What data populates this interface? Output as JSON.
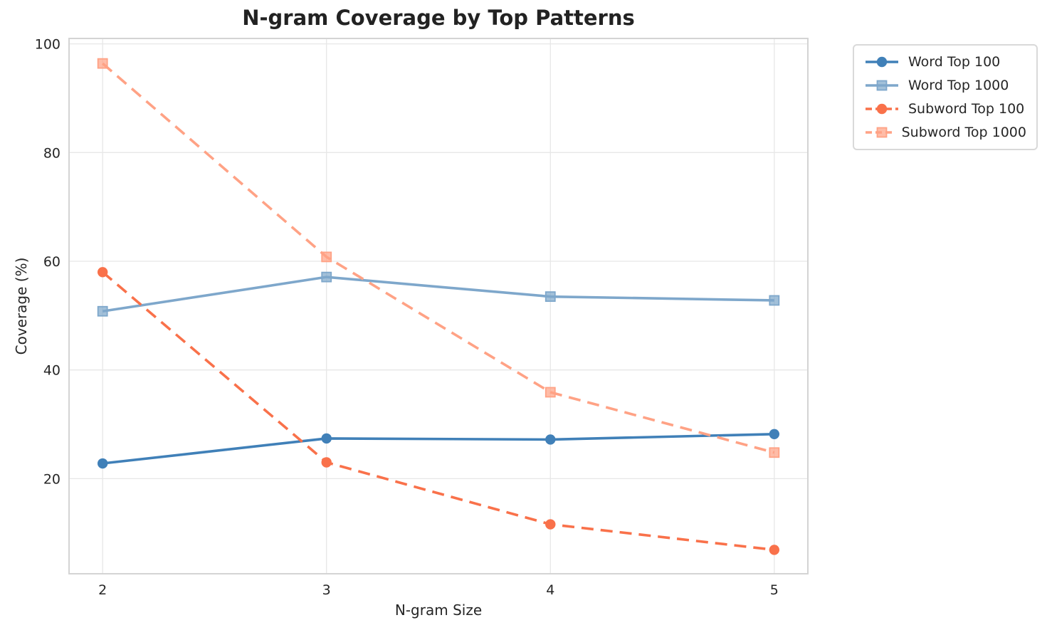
{
  "chart_data": {
    "type": "line",
    "title": "N-gram Coverage by Top Patterns",
    "xlabel": "N-gram Size",
    "ylabel": "Coverage (%)",
    "x": [
      2,
      3,
      4,
      5
    ],
    "xticks": [
      "2",
      "3",
      "4",
      "5"
    ],
    "yticks": [
      "20",
      "40",
      "60",
      "80",
      "100"
    ],
    "ytick_values": [
      20,
      40,
      60,
      80,
      100
    ],
    "xlim": [
      1.85,
      5.15
    ],
    "ylim": [
      2.5,
      101
    ],
    "grid": true,
    "legend_position": "upper right, outside axes",
    "series": [
      {
        "name": "Word Top 100",
        "values": [
          22.8,
          27.4,
          27.2,
          28.2
        ],
        "color": "#4080b8",
        "line_style": "solid",
        "marker": "circle"
      },
      {
        "name": "Word Top 1000",
        "values": [
          50.8,
          57.1,
          53.5,
          52.8
        ],
        "color": "#7ea7cb",
        "line_style": "solid",
        "marker": "square"
      },
      {
        "name": "Subword Top 100",
        "values": [
          58.0,
          23.0,
          11.6,
          6.9
        ],
        "color": "#f9714a",
        "line_style": "dashed",
        "marker": "circle"
      },
      {
        "name": "Subword Top 1000",
        "values": [
          96.4,
          60.8,
          35.9,
          24.8
        ],
        "color": "#ffa285",
        "line_style": "dashed",
        "marker": "square"
      }
    ],
    "colors": {
      "grid": "#e7e7e7",
      "spine": "#d4d4d4",
      "text": "#262626",
      "title": "#222222"
    }
  }
}
